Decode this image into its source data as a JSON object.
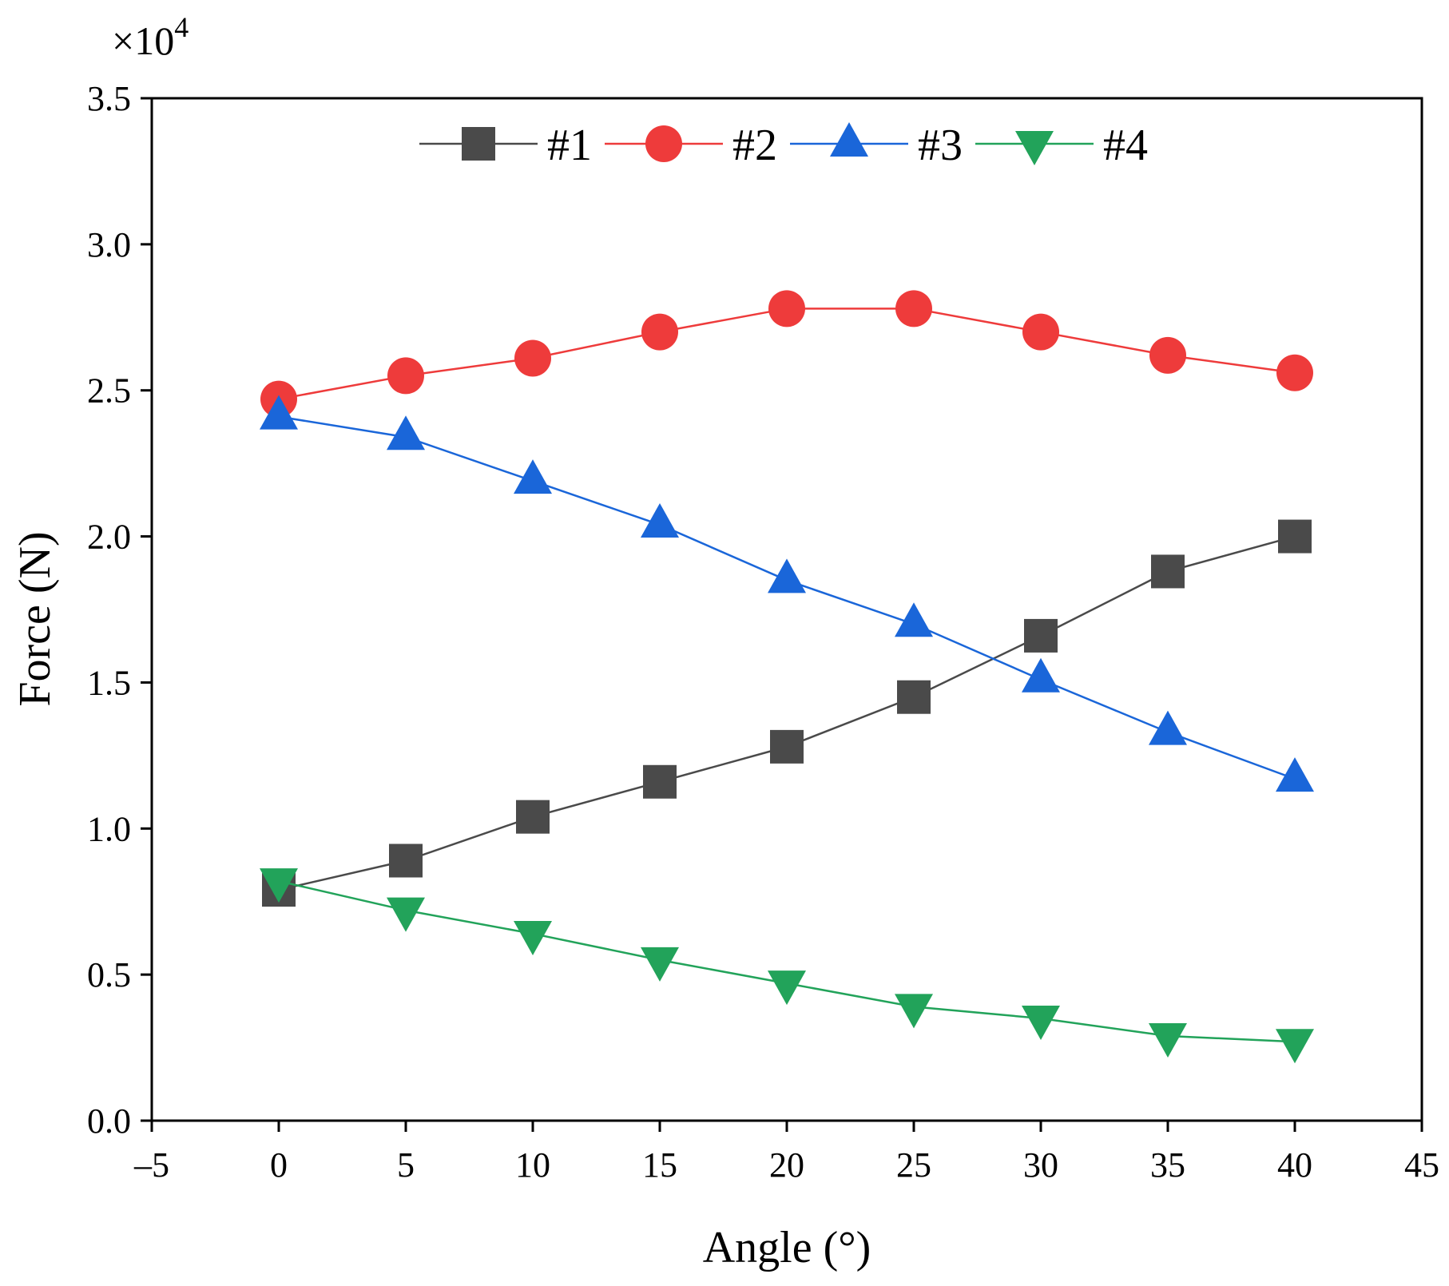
{
  "chart_data": {
    "type": "line",
    "title": "",
    "xlabel": "Angle (°)",
    "ylabel": "Force (N)",
    "y_multiplier_label": "×10",
    "y_multiplier_exponent": "4",
    "xlim": [
      -5,
      45
    ],
    "ylim": [
      0.0,
      3.5
    ],
    "x_ticks": [
      -5,
      0,
      5,
      10,
      15,
      20,
      25,
      30,
      35,
      40,
      45
    ],
    "x_tick_labels": [
      "–5",
      "0",
      "5",
      "10",
      "15",
      "20",
      "25",
      "30",
      "35",
      "40",
      "45"
    ],
    "y_ticks": [
      0.0,
      0.5,
      1.0,
      1.5,
      2.0,
      2.5,
      3.0,
      3.5
    ],
    "y_tick_labels": [
      "0.0",
      "0.5",
      "1.0",
      "1.5",
      "2.0",
      "2.5",
      "3.0",
      "3.5"
    ],
    "grid": false,
    "legend_position": "top-center",
    "x": [
      0,
      5,
      10,
      15,
      20,
      25,
      30,
      35,
      40
    ],
    "series": [
      {
        "name": "#1",
        "color": "#4a4a4a",
        "marker": "square",
        "values": [
          0.79,
          0.89,
          1.04,
          1.16,
          1.28,
          1.45,
          1.66,
          1.88,
          2.0
        ]
      },
      {
        "name": "#2",
        "color": "#ee3b3b",
        "marker": "circle",
        "values": [
          2.47,
          2.55,
          2.61,
          2.7,
          2.78,
          2.78,
          2.7,
          2.62,
          2.56
        ]
      },
      {
        "name": "#3",
        "color": "#1a66d9",
        "marker": "triangle-up",
        "values": [
          2.41,
          2.34,
          2.19,
          2.04,
          1.85,
          1.7,
          1.51,
          1.33,
          1.17
        ]
      },
      {
        "name": "#4",
        "color": "#22a35a",
        "marker": "triangle-down",
        "values": [
          0.82,
          0.72,
          0.64,
          0.55,
          0.47,
          0.39,
          0.35,
          0.29,
          0.27
        ]
      }
    ]
  }
}
